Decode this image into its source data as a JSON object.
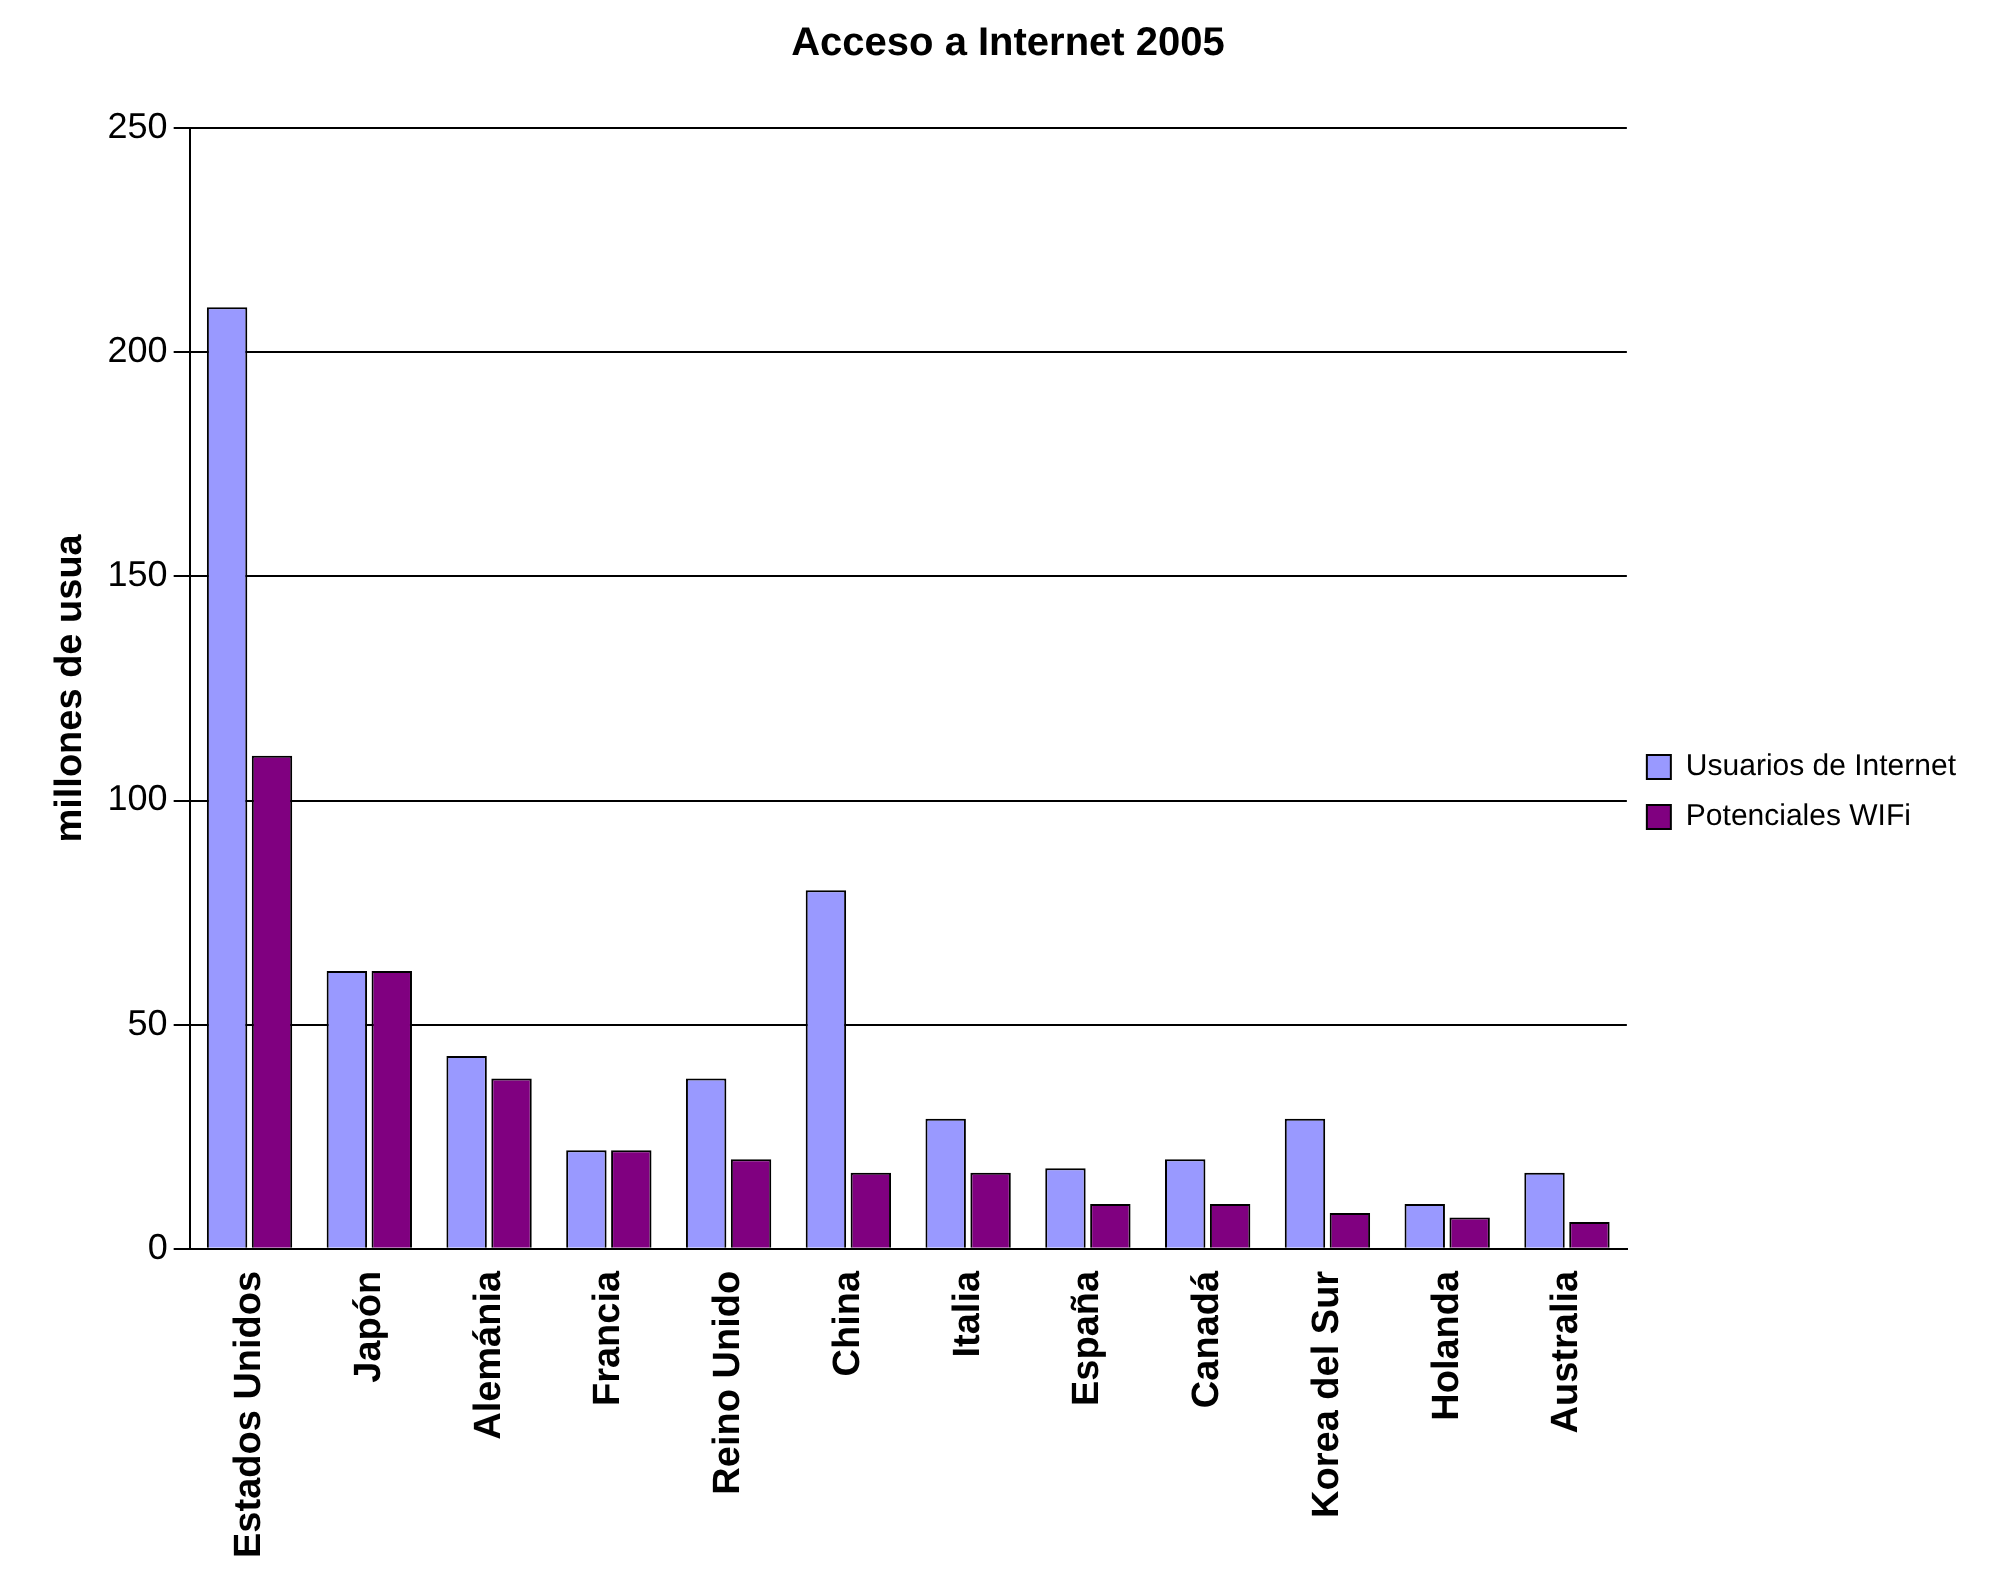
{
  "chart_data": {
    "type": "bar",
    "title": "Acceso a Internet 2005",
    "ylabel": "millones de usua",
    "categories": [
      "Estados Unidos",
      "Japón",
      "Alemánia",
      "Francia",
      "Reino Unido",
      "China",
      "Italia",
      "España",
      "Canadá",
      "Korea del Sur",
      "Holanda",
      "Australia"
    ],
    "series": [
      {
        "name": "Usuarios de Internet",
        "color": "#9999ff",
        "values": [
          210,
          62,
          43,
          22,
          38,
          80,
          29,
          18,
          20,
          29,
          10,
          17
        ]
      },
      {
        "name": "Potenciales WIFi",
        "color": "#800080",
        "values": [
          110,
          62,
          38,
          22,
          20,
          17,
          17,
          10,
          10,
          8,
          7,
          6
        ]
      }
    ],
    "ylim": [
      0,
      250
    ],
    "yticks": [
      0,
      50,
      100,
      150,
      200,
      250
    ],
    "grid": "y",
    "legend": "right"
  }
}
